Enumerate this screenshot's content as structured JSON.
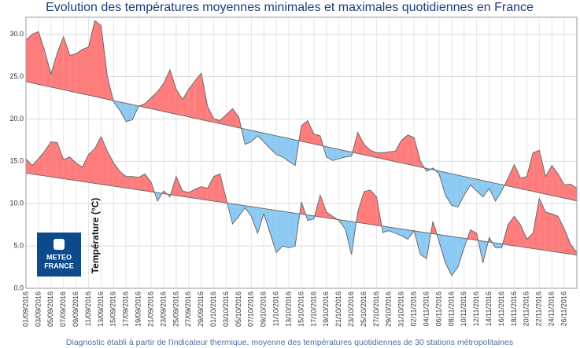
{
  "chart_data": {
    "type": "anomaly",
    "title": "Evolution des températures moyennes minimales et maximales quotidiennes en France",
    "caption": "Diagnostic établi à partir de l'indicateur thermique, moyenne des températures quotidiennes de 30 stations métropolitaines",
    "y_label": "Température (°C)",
    "logo": [
      "METEO",
      "FRANCE"
    ],
    "ylim": [
      0,
      32
    ],
    "yticks": [
      {
        "value": 0,
        "label": "0.0"
      },
      {
        "value": 5,
        "label": "5.0"
      },
      {
        "value": 10,
        "label": "10.0"
      },
      {
        "value": 15,
        "label": "15.0"
      },
      {
        "value": 20,
        "label": "20.0"
      },
      {
        "value": 25,
        "label": "25.0"
      },
      {
        "value": 30,
        "label": "30.0"
      }
    ],
    "grid": true,
    "line_color": "#6b6b6b",
    "above_color": "#ff7c7c",
    "below_color": "#8ccaf4",
    "categories": [
      "01/09/2016",
      null,
      "03/09/2016",
      null,
      "05/09/2016",
      null,
      "07/09/2016",
      null,
      "09/09/2016",
      null,
      "11/09/2016",
      null,
      "13/09/2016",
      null,
      "15/09/2016",
      null,
      "17/09/2016",
      null,
      "19/09/2016",
      null,
      "21/09/2016",
      null,
      "23/09/2016",
      null,
      "25/09/2016",
      null,
      "27/09/2016",
      null,
      "29/09/2016",
      null,
      "01/10/2016",
      null,
      "03/10/2016",
      null,
      "05/10/2016",
      null,
      "07/10/2016",
      null,
      "09/10/2016",
      null,
      "11/10/2016",
      null,
      "13/10/2016",
      null,
      "15/10/2016",
      null,
      "17/10/2016",
      null,
      "19/10/2016",
      null,
      "21/10/2016",
      null,
      "23/10/2016",
      null,
      "25/10/2016",
      null,
      "27/10/2016",
      null,
      "29/10/2016",
      null,
      "31/10/2016",
      null,
      "02/11/2016",
      null,
      "04/11/2016",
      null,
      "06/11/2016",
      null,
      "08/11/2016",
      null,
      "10/11/2016",
      null,
      "12/11/2016",
      null,
      "14/11/2016",
      null,
      "16/11/2016",
      null,
      "18/11/2016",
      null,
      "20/11/2016",
      null,
      "22/11/2016",
      null,
      "24/11/2016",
      null,
      "26/11/2016",
      null,
      null
    ],
    "series": [
      {
        "values": [
          29.3,
          30,
          30.3,
          28,
          25.3,
          27.8,
          29.7,
          27.5,
          27.7,
          28.2,
          28.5,
          31.6,
          31,
          25,
          22,
          21,
          19.7,
          19.9,
          21.5,
          21.8,
          22.5,
          23.2,
          24.2,
          25.8,
          23.5,
          22.3,
          23.5,
          24.5,
          25.4,
          21.5,
          20,
          19.8,
          20.5,
          21.2,
          20.2,
          17,
          17.3,
          18,
          17.3,
          16.5,
          15.8,
          15.5,
          15,
          14.5,
          19.2,
          19.8,
          18.2,
          18,
          15.5,
          15.1,
          15.3,
          15.5,
          15.6,
          18.4,
          17,
          16.3,
          16,
          16,
          16.1,
          16.2,
          17.5,
          18.1,
          17.8,
          15,
          13.8,
          14.2,
          13.5,
          11,
          9.8,
          9.6,
          11,
          12.2,
          11.5,
          10.8,
          11.8,
          10.3,
          11.5,
          13,
          14.6,
          13,
          13.2,
          16,
          16.3,
          13.2,
          14.5,
          13.5,
          12.2,
          12.3,
          11.8
        ],
        "normal": [
          24.4,
          24.24,
          24.08,
          23.92,
          23.76,
          23.6,
          23.44,
          23.28,
          23.12,
          22.96,
          22.8,
          22.64,
          22.48,
          22.32,
          22.16,
          22.0,
          21.84,
          21.68,
          21.52,
          21.36,
          21.2,
          21.04,
          20.88,
          20.72,
          20.56,
          20.4,
          20.24,
          20.08,
          19.92,
          19.76,
          19.6,
          19.44,
          19.28,
          19.12,
          18.96,
          18.8,
          18.64,
          18.48,
          18.32,
          18.16,
          18.0,
          17.84,
          17.68,
          17.52,
          17.36,
          17.2,
          17.04,
          16.88,
          16.72,
          16.56,
          16.4,
          16.24,
          16.08,
          15.92,
          15.76,
          15.6,
          15.44,
          15.28,
          15.12,
          14.96,
          14.8,
          14.64,
          14.48,
          14.32,
          14.16,
          14.0,
          13.84,
          13.68,
          13.52,
          13.36,
          13.2,
          13.04,
          12.88,
          12.72,
          12.56,
          12.4,
          12.24,
          12.08,
          11.92,
          11.76,
          11.6,
          11.44,
          11.28,
          11.12,
          10.96,
          10.8,
          10.64,
          10.48,
          10.32
        ]
      },
      {
        "values": [
          15.3,
          14.5,
          15.3,
          16.2,
          17.3,
          17.2,
          15.2,
          15.5,
          14.8,
          14.3,
          15.8,
          16.5,
          17.9,
          16.2,
          14.8,
          13.8,
          13.2,
          13.2,
          13.1,
          13.5,
          12.5,
          10.3,
          11.5,
          10.8,
          13.2,
          11.5,
          11.3,
          11.7,
          12,
          11.8,
          13.2,
          13.5,
          10.5,
          7.6,
          8.5,
          9.5,
          8.5,
          6.5,
          8.8,
          6.5,
          4.2,
          5,
          4.8,
          5,
          10.2,
          8,
          8.2,
          11,
          9,
          8.5,
          8,
          7,
          4,
          9,
          11.4,
          11.6,
          10.8,
          6.6,
          6.8,
          6.5,
          6.2,
          5.8,
          6.8,
          4,
          3.5,
          7.9,
          5.5,
          3,
          1.5,
          2.5,
          4.8,
          6.9,
          6.5,
          3,
          6,
          4.8,
          4.8,
          7.5,
          8.5,
          7.5,
          5.8,
          6.5,
          10.6,
          9,
          8.8,
          8.5,
          7,
          5.2,
          4.2
        ],
        "normal": [
          13.6,
          13.49,
          13.38,
          13.27,
          13.16,
          13.05,
          12.94,
          12.83,
          12.72,
          12.61,
          12.5,
          12.39,
          12.28,
          12.17,
          12.06,
          11.95,
          11.84,
          11.73,
          11.62,
          11.51,
          11.4,
          11.29,
          11.18,
          11.07,
          10.96,
          10.85,
          10.74,
          10.63,
          10.52,
          10.41,
          10.3,
          10.19,
          10.08,
          9.97,
          9.86,
          9.75,
          9.64,
          9.53,
          9.42,
          9.31,
          9.2,
          9.09,
          8.98,
          8.87,
          8.76,
          8.65,
          8.54,
          8.43,
          8.32,
          8.21,
          8.1,
          7.99,
          7.88,
          7.77,
          7.66,
          7.55,
          7.44,
          7.33,
          7.22,
          7.11,
          7.0,
          6.89,
          6.78,
          6.67,
          6.56,
          6.45,
          6.34,
          6.23,
          6.12,
          6.01,
          5.9,
          5.79,
          5.68,
          5.57,
          5.46,
          5.35,
          5.24,
          5.13,
          5.02,
          4.91,
          4.8,
          4.69,
          4.58,
          4.47,
          4.36,
          4.25,
          4.14,
          4.03,
          3.92
        ]
      }
    ]
  }
}
